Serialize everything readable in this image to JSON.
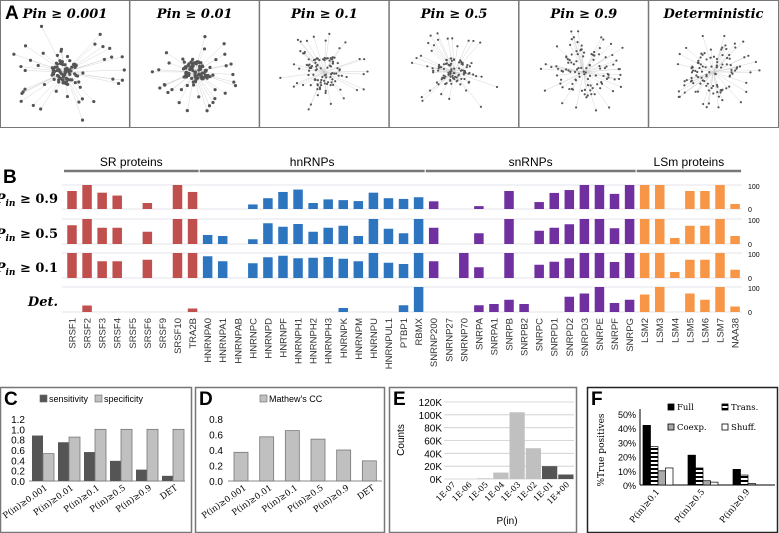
{
  "panel_labels": {
    "A": "A",
    "B": "B",
    "C": "C",
    "D": "D",
    "E": "E",
    "F": "F"
  },
  "colors": {
    "sr": "#c0504d",
    "hnrnp": "#2e75c0",
    "snrnp": "#7030a0",
    "lsm": "#f79646",
    "dark": "#555555",
    "light": "#c0c0c0"
  },
  "chart_data": [
    {
      "panel": "A",
      "type": "network",
      "titles": [
        "Pin ≥ 0.001",
        "Pin ≥ 0.01",
        "Pin ≥ 0.1",
        "Pin ≥ 0.5",
        "Pin ≥ 0.9",
        "Deterministic"
      ]
    },
    {
      "panel": "B",
      "type": "bar",
      "groups": [
        {
          "name": "SR proteins",
          "color": "sr",
          "count": 9
        },
        {
          "name": "hnRNPs",
          "color": "hnrnp",
          "count": 15
        },
        {
          "name": "snRNPs",
          "color": "snrnp",
          "count": 14
        },
        {
          "name": "LSm proteins",
          "color": "lsm",
          "count": 7
        }
      ],
      "categories": [
        "SRSF1",
        "SRSF2",
        "SRSF3",
        "SRSF4",
        "SRSF5",
        "SRSF6",
        "SRSF9",
        "SRSF10",
        "TRA2B",
        "HNRNPA0",
        "HNRNPA1",
        "HNRNPAB",
        "HNRNPC",
        "HNRNPD",
        "HNRNPF",
        "HNRNPH1",
        "HNRNPH2",
        "HNRNPH3",
        "HNRNPK",
        "HNRNPM",
        "HNRNPU",
        "HNRNPUL1",
        "PTBP1",
        "RBMX",
        "SNRNP200",
        "SNRNP27",
        "SNRNP70",
        "SNRPA",
        "SNRPA1",
        "SNRPB",
        "SNRPB2",
        "SNRPC",
        "SNRPD1",
        "SNRPD2",
        "SNRPD3",
        "SNRPE",
        "SNRPF",
        "SNRPG",
        "LSM2",
        "LSM3",
        "LSM4",
        "LSM5",
        "LSM6",
        "LSM7",
        "NAA38"
      ],
      "ylim": [
        0,
        100
      ],
      "ytick_labels": [
        "100",
        "0"
      ],
      "series": [
        {
          "name": "P_in ≥ 0.9",
          "label_main": "P",
          "label_sub": "in",
          "label_rest": " ≥ 0.9",
          "values": [
            75,
            100,
            68,
            56,
            0,
            25,
            0,
            100,
            71,
            0,
            0,
            0,
            19,
            45,
            71,
            81,
            25,
            40,
            37,
            33,
            68,
            45,
            42,
            49,
            32,
            0,
            0,
            12,
            0,
            75,
            0,
            29,
            67,
            79,
            100,
            100,
            63,
            100,
            100,
            100,
            0,
            75,
            75,
            100,
            21
          ]
        },
        {
          "name": "P_in ≥ 0.5",
          "label_main": "P",
          "label_sub": "in",
          "label_rest": " ≥ 0.5",
          "values": [
            75,
            100,
            65,
            65,
            0,
            49,
            0,
            100,
            100,
            36,
            32,
            0,
            19,
            83,
            69,
            80,
            49,
            65,
            73,
            32,
            100,
            61,
            43,
            100,
            65,
            0,
            0,
            43,
            0,
            100,
            0,
            53,
            65,
            79,
            100,
            100,
            63,
            100,
            100,
            100,
            24,
            73,
            73,
            100,
            32
          ]
        },
        {
          "name": "P_in ≥ 0.1",
          "label_main": "P",
          "label_sub": "in",
          "label_rest": " ≥ 0.1",
          "values": [
            100,
            100,
            67,
            67,
            0,
            73,
            0,
            100,
            100,
            87,
            67,
            0,
            59,
            83,
            89,
            79,
            81,
            84,
            77,
            67,
            100,
            61,
            56,
            100,
            67,
            0,
            100,
            43,
            0,
            100,
            0,
            53,
            65,
            79,
            100,
            100,
            64,
            100,
            100,
            100,
            24,
            73,
            73,
            100,
            33
          ]
        },
        {
          "name": "Det.",
          "label_main": "Det.",
          "label_sub": "",
          "label_rest": "",
          "values": [
            0,
            26,
            0,
            0,
            0,
            0,
            0,
            0,
            14,
            0,
            0,
            0,
            0,
            0,
            0,
            0,
            0,
            0,
            16,
            0,
            0,
            0,
            27,
            100,
            0,
            0,
            0,
            27,
            32,
            49,
            32,
            0,
            0,
            61,
            74,
            100,
            36,
            49,
            70,
            100,
            0,
            74,
            49,
            100,
            22
          ]
        }
      ]
    },
    {
      "panel": "C",
      "type": "bar",
      "categories": [
        "P(in)≥0.001",
        "P(in)≥0.01",
        "P(in)≥0.1",
        "P(in)≥0.5",
        "P(in)≥0.9",
        "DET"
      ],
      "series": [
        {
          "name": "sensitivity",
          "color": "#555555",
          "values": [
            0.88,
            0.75,
            0.56,
            0.39,
            0.22,
            0.1
          ]
        },
        {
          "name": "specificity",
          "color": "#c0c0c0",
          "values": [
            0.53,
            0.85,
            1.0,
            1.0,
            1.0,
            1.0
          ]
        }
      ],
      "ylim": [
        0,
        1.2
      ],
      "yticks": [
        "0.0",
        "0.2",
        "0.4",
        "0.6",
        "0.8",
        "1.0",
        "1.2"
      ],
      "legend": "top"
    },
    {
      "panel": "D",
      "type": "bar",
      "categories": [
        "P(in)≥0.001",
        "P(in)≥0.01",
        "P(in)≥0.1",
        "P(in)≥0.5",
        "P(in)≥0.9",
        "DET"
      ],
      "series": [
        {
          "name": "Mathew's CC",
          "color": "#c0c0c0",
          "values": [
            0.37,
            0.57,
            0.65,
            0.54,
            0.4,
            0.26
          ]
        }
      ],
      "ylim": [
        0,
        0.8
      ],
      "yticks": [
        "0.0",
        "0.2",
        "0.4",
        "0.6",
        "0.8"
      ],
      "legend": "top"
    },
    {
      "panel": "E",
      "type": "bar",
      "categories": [
        "1E-07",
        "1E-06",
        "1E-05",
        "1E-04",
        "1E-03",
        "1E-02",
        "1E-01",
        "1E+00"
      ],
      "values": [
        0,
        0,
        1000,
        10000,
        104000,
        48000,
        20000,
        7000
      ],
      "bar_shades": [
        "light",
        "light",
        "light",
        "light",
        "light",
        "light",
        "dark",
        "dark"
      ],
      "ylim": [
        0,
        120000
      ],
      "yticks": [
        "0K",
        "20K",
        "40K",
        "60K",
        "80K",
        "100K",
        "120K"
      ],
      "xlabel": "P(in)",
      "ylabel": "Counts",
      "grid": true
    },
    {
      "panel": "F",
      "type": "bar",
      "categories": [
        "P(in)≥0.1",
        "P(in)≥0.5",
        "P(in)≥0.9"
      ],
      "series": [
        {
          "name": "Full",
          "style": "black",
          "values": [
            42,
            21,
            11
          ]
        },
        {
          "name": "Trans.",
          "style": "striped",
          "values": [
            27,
            12,
            7
          ]
        },
        {
          "name": "Coexp.",
          "style": "gray",
          "values": [
            10,
            3,
            1
          ]
        },
        {
          "name": "Shuff.",
          "style": "white",
          "values": [
            12,
            2,
            0
          ]
        }
      ],
      "ylim": [
        0,
        50
      ],
      "yticks": [
        "0%",
        "10%",
        "20%",
        "30%",
        "40%",
        "50%"
      ],
      "ylabel": "%True positives",
      "legend": "top-right"
    }
  ]
}
